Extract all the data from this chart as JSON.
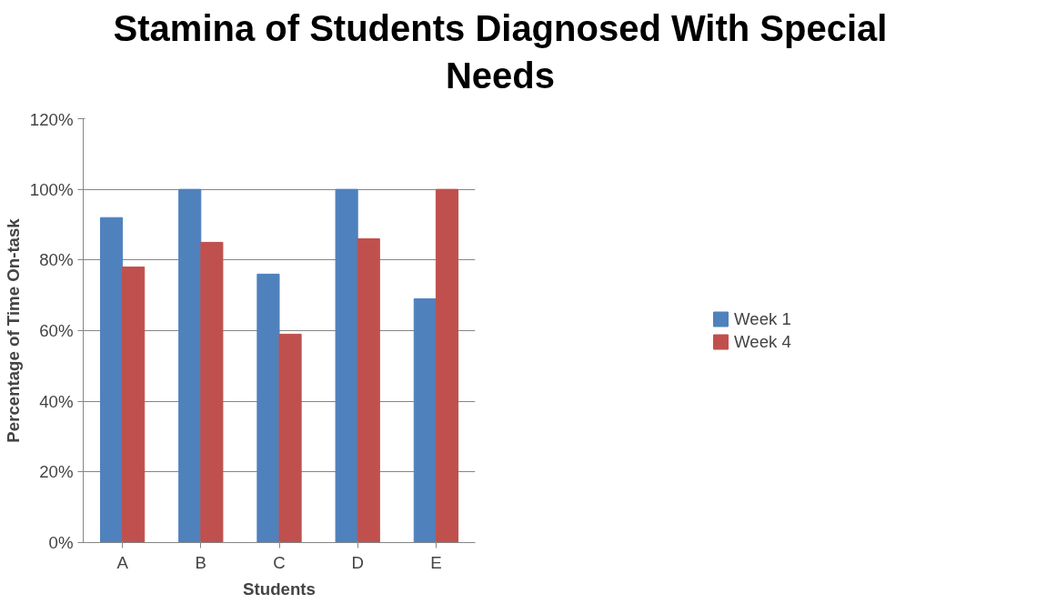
{
  "chart_data": {
    "type": "bar",
    "title": "Stamina of Students Diagnosed With Special Needs",
    "xlabel": "Students",
    "ylabel": "Percentage of Time On-task",
    "categories": [
      "A",
      "B",
      "C",
      "D",
      "E"
    ],
    "series": [
      {
        "name": "Week 1",
        "color": "#4f81bd",
        "values": [
          92,
          100,
          76,
          100,
          69
        ]
      },
      {
        "name": "Week 4",
        "color": "#c0504d",
        "values": [
          78,
          85,
          59,
          86,
          100
        ]
      }
    ],
    "ylim": [
      0,
      120
    ],
    "yticks": [
      {
        "value": 0,
        "label": "0%"
      },
      {
        "value": 20,
        "label": "20%"
      },
      {
        "value": 40,
        "label": "40%"
      },
      {
        "value": 60,
        "label": "60%"
      },
      {
        "value": 80,
        "label": "80%"
      },
      {
        "value": 100,
        "label": "100%"
      },
      {
        "value": 120,
        "label": "120%"
      }
    ],
    "grid": "y",
    "legend": "right"
  }
}
